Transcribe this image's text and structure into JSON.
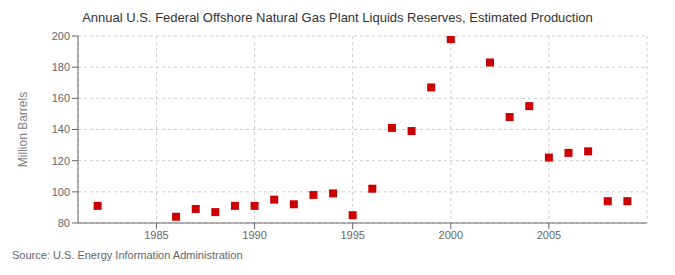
{
  "chart_data": {
    "type": "scatter",
    "title": "Annual U.S. Federal Offshore Natural Gas Plant Liquids Reserves, Estimated Production",
    "ylabel": "Million Barrels",
    "annotations": [
      "Source: U.S. Energy Information Administration"
    ],
    "x": [
      1982,
      1986,
      1987,
      1988,
      1989,
      1990,
      1991,
      1992,
      1993,
      1994,
      1995,
      1996,
      1997,
      1998,
      1999,
      2000,
      2002,
      2003,
      2004,
      2005,
      2006,
      2007,
      2008,
      2009
    ],
    "values": [
      91,
      84,
      89,
      87,
      91,
      91,
      95,
      92,
      98,
      99,
      85,
      102,
      141,
      139,
      167,
      198,
      183,
      148,
      155,
      122,
      125,
      126,
      94,
      94
    ],
    "color": "#cc0000",
    "marker": "square",
    "xlim": [
      1981,
      2010
    ],
    "xticks": [
      1985,
      1990,
      1995,
      2000,
      2005
    ],
    "ylim": [
      80,
      200
    ],
    "yticks": [
      80,
      100,
      120,
      140,
      160,
      180,
      200
    ],
    "grid": true
  }
}
